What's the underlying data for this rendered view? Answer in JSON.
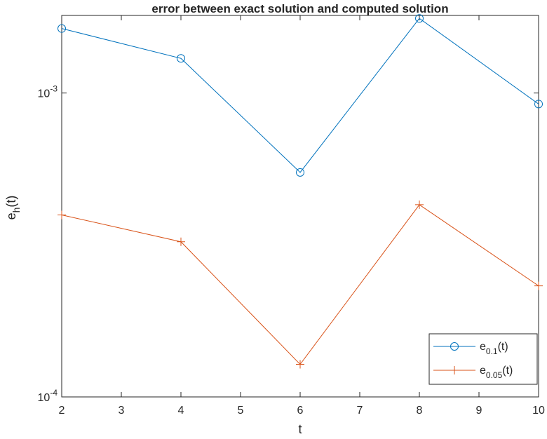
{
  "chart_data": {
    "type": "line",
    "title": "error between exact solution and computed solution",
    "x_label": "t",
    "y_label": {
      "base": "e",
      "subscript": "h",
      "suffix": "(t)"
    },
    "x": [
      2,
      4,
      6,
      8,
      10
    ],
    "series": [
      {
        "name": "e",
        "subscript": "0.1",
        "suffix": "(t)",
        "color": "#0072BD",
        "marker": "circle",
        "values": [
          0.00163,
          0.0013,
          0.000548,
          0.00176,
          0.00092
        ]
      },
      {
        "name": "e",
        "subscript": "0.05",
        "suffix": "(t)",
        "color": "#D95319",
        "marker": "plus",
        "values": [
          0.000397,
          0.000324,
          0.000128,
          0.000429,
          0.000232
        ]
      }
    ],
    "xlim": [
      2,
      10
    ],
    "xticks": [
      2,
      3,
      4,
      5,
      6,
      7,
      8,
      9,
      10
    ],
    "ylim": [
      0.0001,
      0.0018
    ],
    "yticks": [
      {
        "value": 0.0001,
        "label": "10",
        "exponent": "-4"
      },
      {
        "value": 0.001,
        "label": "10",
        "exponent": "-3"
      }
    ],
    "y_scale": "log",
    "grid": false,
    "legend": "southeast"
  }
}
